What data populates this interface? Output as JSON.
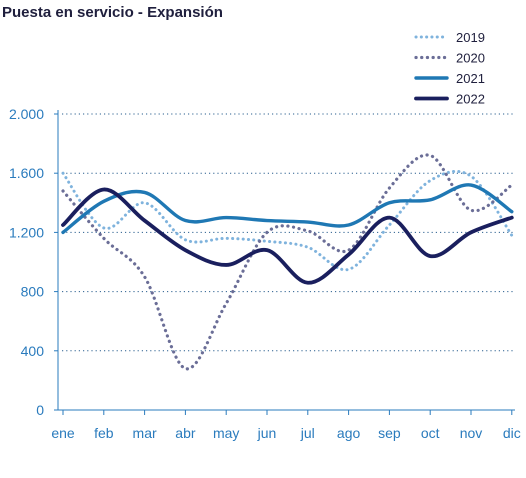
{
  "chart_data": {
    "type": "line",
    "title": "Puesta en servicio - Expansión",
    "xlabel": "",
    "ylabel": "",
    "categories": [
      "ene",
      "feb",
      "mar",
      "abr",
      "may",
      "jun",
      "jul",
      "ago",
      "sep",
      "oct",
      "nov",
      "dic"
    ],
    "ylim": [
      0,
      2000
    ],
    "yticks": [
      0,
      400,
      800,
      1200,
      1600,
      2000
    ],
    "ytick_labels": [
      "0",
      "400",
      "800",
      "1.200",
      "1.600",
      "2.000"
    ],
    "grid": "horizontal dotted",
    "legend_position": "top-right",
    "series": [
      {
        "name": "2019",
        "color": "#7fb3dd",
        "style": "dotted-light",
        "values": [
          1600,
          1230,
          1400,
          1150,
          1160,
          1140,
          1100,
          950,
          1250,
          1550,
          1580,
          1180
        ]
      },
      {
        "name": "2020",
        "color": "#6b6e97",
        "style": "dotted-dark",
        "values": [
          1480,
          1160,
          900,
          280,
          720,
          1200,
          1210,
          1080,
          1500,
          1720,
          1350,
          1520
        ]
      },
      {
        "name": "2021",
        "color": "#1f78b4",
        "style": "solid-medium",
        "values": [
          1200,
          1410,
          1470,
          1280,
          1300,
          1280,
          1270,
          1250,
          1400,
          1420,
          1520,
          1340
        ]
      },
      {
        "name": "2022",
        "color": "#1a1f5e",
        "style": "solid-thick",
        "values": [
          1250,
          1490,
          1280,
          1080,
          980,
          1080,
          860,
          1050,
          1300,
          1040,
          1200,
          1300
        ]
      }
    ]
  }
}
